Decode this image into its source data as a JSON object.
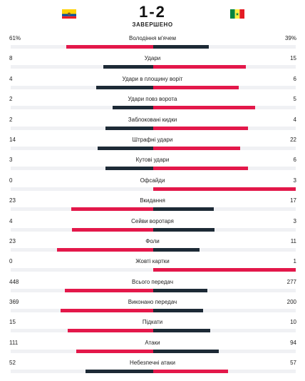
{
  "colors": {
    "leader": "#e3184a",
    "trailer": "#1d2a36",
    "track": "#f0f1f4"
  },
  "match": {
    "home_flag_icon": "ecuador-flag-icon",
    "away_flag_icon": "senegal-flag-icon",
    "score": "1-2",
    "status": "ЗАВЕРШЕНО"
  },
  "stats": [
    {
      "label": "Володіння м'ячем",
      "home": "61%",
      "away": "39%",
      "home_n": 61,
      "away_n": 39
    },
    {
      "label": "Удари",
      "home": "8",
      "away": "15",
      "home_n": 8,
      "away_n": 15
    },
    {
      "label": "Удари в площину воріт",
      "home": "4",
      "away": "6",
      "home_n": 4,
      "away_n": 6
    },
    {
      "label": "Удари повз ворота",
      "home": "2",
      "away": "5",
      "home_n": 2,
      "away_n": 5
    },
    {
      "label": "Заблоковані кидки",
      "home": "2",
      "away": "4",
      "home_n": 2,
      "away_n": 4
    },
    {
      "label": "Штрафні удари",
      "home": "14",
      "away": "22",
      "home_n": 14,
      "away_n": 22
    },
    {
      "label": "Кутові удари",
      "home": "3",
      "away": "6",
      "home_n": 3,
      "away_n": 6
    },
    {
      "label": "Офсайди",
      "home": "0",
      "away": "3",
      "home_n": 0,
      "away_n": 3
    },
    {
      "label": "Вкидання",
      "home": "23",
      "away": "17",
      "home_n": 23,
      "away_n": 17
    },
    {
      "label": "Сейви воротаря",
      "home": "4",
      "away": "3",
      "home_n": 4,
      "away_n": 3
    },
    {
      "label": "Фоли",
      "home": "23",
      "away": "11",
      "home_n": 23,
      "away_n": 11
    },
    {
      "label": "Жовті картки",
      "home": "0",
      "away": "1",
      "home_n": 0,
      "away_n": 1
    },
    {
      "label": "Всього передач",
      "home": "448",
      "away": "277",
      "home_n": 448,
      "away_n": 277
    },
    {
      "label": "Виконано передач",
      "home": "369",
      "away": "200",
      "home_n": 369,
      "away_n": 200
    },
    {
      "label": "Підкати",
      "home": "15",
      "away": "10",
      "home_n": 15,
      "away_n": 10
    },
    {
      "label": "Атаки",
      "home": "111",
      "away": "94",
      "home_n": 111,
      "away_n": 94
    },
    {
      "label": "Небезпечні атаки",
      "home": "52",
      "away": "57",
      "home_n": 52,
      "away_n": 57
    }
  ]
}
